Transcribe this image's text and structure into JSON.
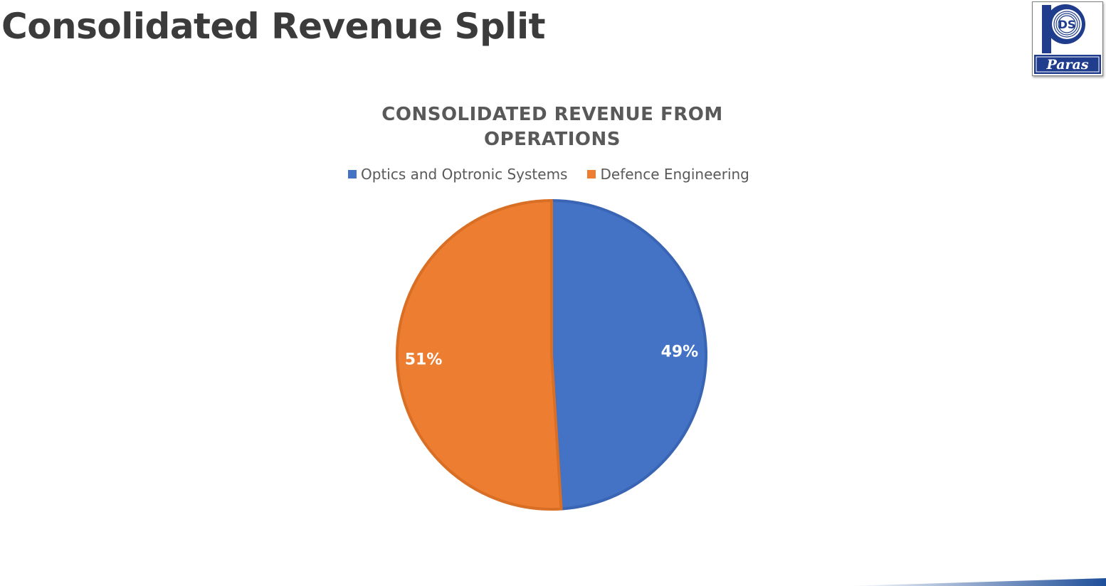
{
  "slide": {
    "title": "Consolidated Revenue Split"
  },
  "logo": {
    "monogram": "DS",
    "wordmark": "Paras",
    "brand_color": "#1f3d8c"
  },
  "chart_data": {
    "type": "pie",
    "title_lines": [
      "CONSOLIDATED REVENUE FROM",
      "OPERATIONS"
    ],
    "legend_position": "top",
    "categories": [
      "Optics and Optronic Systems",
      "Defence Engineering"
    ],
    "values": [
      49,
      51
    ],
    "data_labels": [
      "49%",
      "51%"
    ],
    "colors": [
      "#4472c4",
      "#ed7d31"
    ],
    "slice_border_colors": [
      "#3a64b4",
      "#d96e25"
    ]
  },
  "accent_color": "#1f4e99"
}
